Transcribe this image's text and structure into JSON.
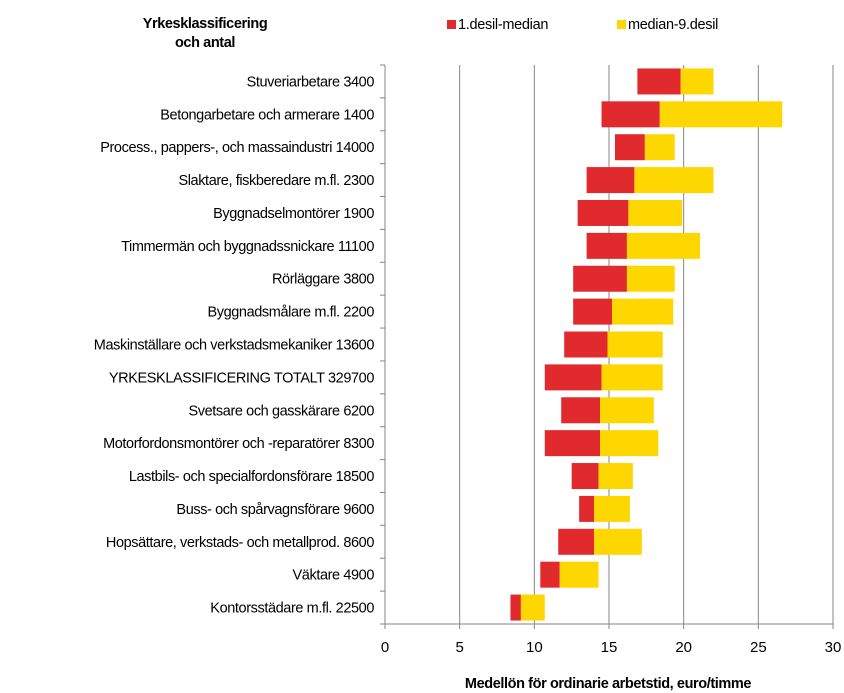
{
  "chart_data": {
    "type": "bar",
    "orientation": "horizontal-floating",
    "header_label": [
      "Yrkesklassificering",
      "och antal"
    ],
    "xlabel": "Medellön för ordinarie arbetstid, euro/timme",
    "xlim": [
      0,
      30
    ],
    "xticks": [
      0,
      5,
      10,
      15,
      20,
      25,
      30
    ],
    "grid": true,
    "legend_position": "top",
    "categories": [
      "Stuveriarbetare  3400",
      "Betongarbetare och armerare  1400",
      "Process., pappers-, och massaindustri 14000",
      "Slaktare, fiskberedare m.fl.  2300",
      "Byggnadselmontörer  1900",
      "Timmermän och byggnadssnickare  11100",
      "Rörläggare  3800",
      "Byggnadsmålare m.fl.  2200",
      "Maskinställare och verkstadsmekaniker  13600",
      "YRKESKLASSIFICERING TOTALT   329700",
      "Svetsare och gasskärare  6200",
      "Motorfordonsmontörer och -reparatörer 8300",
      "Lastbils- och specialfordonsförare 18500",
      "Buss- och spårvagnsförare  9600",
      "Hopsättare, verkstads- och metallprod. 8600",
      "Väktare  4900",
      "Kontorsstädare m.fl. 22500"
    ],
    "series": [
      {
        "name": "1.desil-median",
        "color": "#E02A2E",
        "ranges": [
          [
            16.9,
            19.8
          ],
          [
            14.5,
            18.4
          ],
          [
            15.4,
            17.4
          ],
          [
            13.5,
            16.7
          ],
          [
            12.9,
            16.3
          ],
          [
            13.5,
            16.2
          ],
          [
            12.6,
            16.2
          ],
          [
            12.6,
            15.2
          ],
          [
            12.0,
            14.9
          ],
          [
            10.7,
            14.5
          ],
          [
            11.8,
            14.4
          ],
          [
            10.7,
            14.4
          ],
          [
            12.5,
            14.3
          ],
          [
            13.0,
            14.0
          ],
          [
            11.6,
            14.0
          ],
          [
            10.4,
            11.7
          ],
          [
            8.4,
            9.1
          ]
        ]
      },
      {
        "name": "median-9.desil",
        "color": "#FFD700",
        "ranges": [
          [
            19.8,
            22.0
          ],
          [
            18.4,
            26.6
          ],
          [
            17.4,
            19.4
          ],
          [
            16.7,
            22.0
          ],
          [
            16.3,
            19.9
          ],
          [
            16.2,
            21.1
          ],
          [
            16.2,
            19.4
          ],
          [
            15.2,
            19.3
          ],
          [
            14.9,
            18.6
          ],
          [
            14.5,
            18.6
          ],
          [
            14.4,
            18.0
          ],
          [
            14.4,
            18.3
          ],
          [
            14.3,
            16.6
          ],
          [
            14.0,
            16.4
          ],
          [
            14.0,
            17.2
          ],
          [
            11.7,
            14.3
          ],
          [
            9.1,
            10.7
          ]
        ]
      }
    ]
  }
}
